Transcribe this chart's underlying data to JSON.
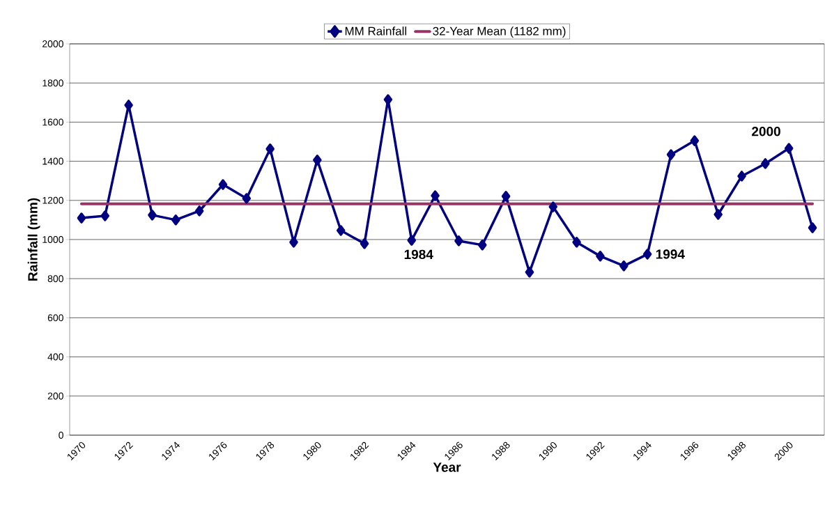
{
  "chart_data": {
    "type": "line",
    "xlabel": "Year",
    "ylabel": "Rainfall (mm)",
    "categories": [
      "1970",
      null,
      "1972",
      null,
      "1974",
      null,
      "1976",
      null,
      "1978",
      null,
      "1980",
      null,
      "1982",
      null,
      "1984",
      null,
      "1986",
      null,
      "1988",
      null,
      "1990",
      null,
      "1992",
      null,
      "1994",
      null,
      "1996",
      null,
      "1998",
      null,
      "2000",
      null
    ],
    "series": [
      {
        "name": "MM Rainfall",
        "color": "#000080",
        "values": [
          1110,
          1121,
          1687,
          1125,
          1100,
          1146,
          1281,
          1210,
          1463,
          986,
          1406,
          1046,
          979,
          1715,
          996,
          1224,
          993,
          972,
          1221,
          833,
          1167,
          986,
          915,
          865,
          925,
          1434,
          1505,
          1128,
          1324,
          1388,
          1466,
          1060
        ]
      }
    ],
    "ref_lines": [
      {
        "axis": "y",
        "value": 1182,
        "label": "32-Year Mean (1182 mm)",
        "color": "#993366"
      }
    ],
    "annotations": [
      {
        "text": "1984",
        "x": "1984",
        "y": 996
      },
      {
        "text": "1994",
        "x": "1994",
        "y": 925
      },
      {
        "text": "2000",
        "x": "2000",
        "y": 1466
      }
    ],
    "ylim": [
      0,
      2000
    ],
    "yticks": [
      0,
      200,
      400,
      600,
      800,
      1000,
      1200,
      1400,
      1600,
      1800,
      2000
    ],
    "grid": "y",
    "legend": "top",
    "marker": "diamond",
    "line_style": "solid"
  }
}
